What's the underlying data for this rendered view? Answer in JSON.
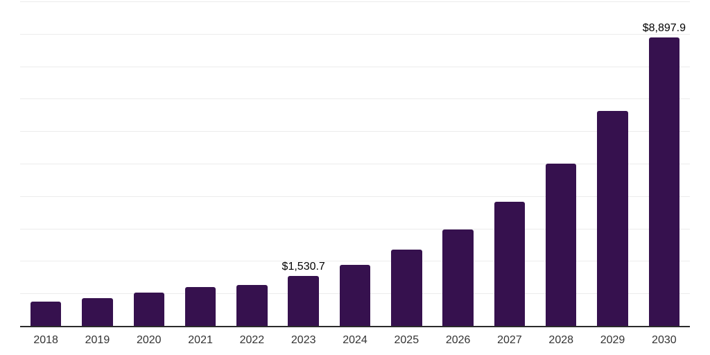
{
  "chart_data": {
    "type": "bar",
    "title": "",
    "xlabel": "",
    "ylabel": "",
    "categories": [
      "2018",
      "2019",
      "2020",
      "2021",
      "2022",
      "2023",
      "2024",
      "2025",
      "2026",
      "2027",
      "2028",
      "2029",
      "2030"
    ],
    "values": [
      740,
      845,
      1030,
      1205,
      1270,
      1530.7,
      1880,
      2340,
      2965,
      3820,
      4995,
      6630,
      8897.9
    ],
    "point_labels": [
      "",
      "",
      "",
      "",
      "",
      "$1,530.7",
      "",
      "",
      "",
      "",
      "",
      "",
      "$8,897.9"
    ],
    "ylim": [
      0,
      10000
    ],
    "gridline_interval": 1000,
    "grid": "horizontal-only",
    "legend": "none",
    "y_axis_tick_labels": "none",
    "colors": {
      "bar": "#36114E",
      "gridline": "#ececec",
      "axis": "#2b2b2b",
      "x_tick_label": "#333333",
      "value_label": "#000000",
      "background": "#ffffff"
    }
  }
}
